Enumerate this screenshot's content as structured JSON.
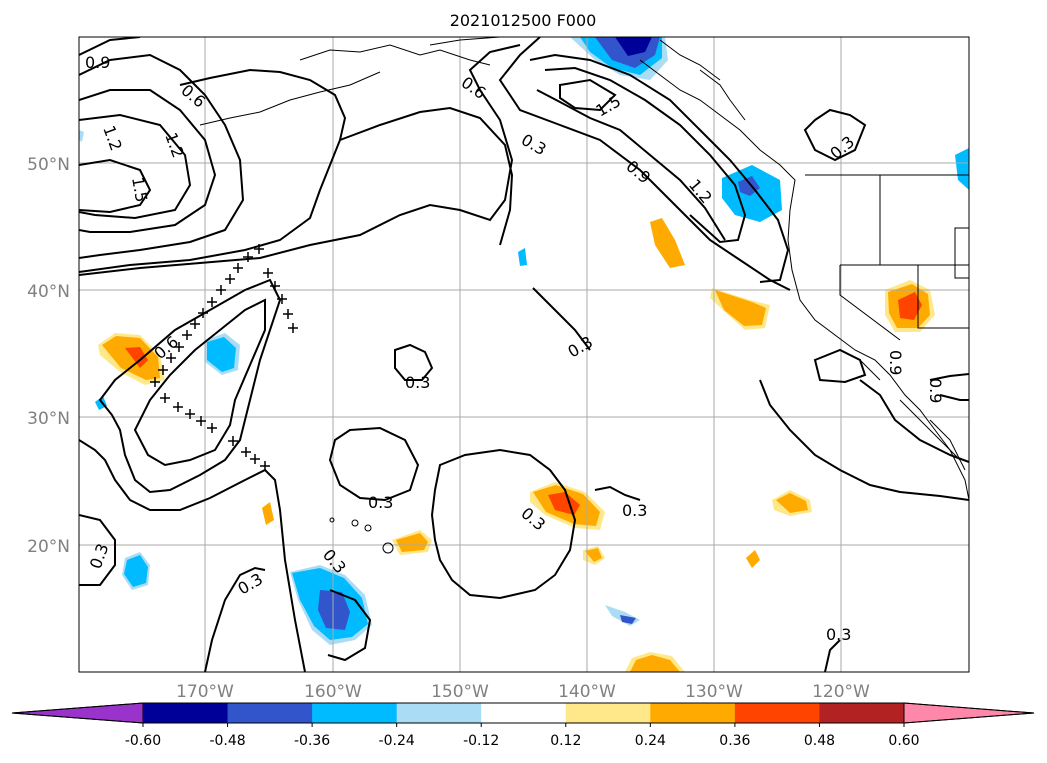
{
  "title": "2021012500 F000",
  "lat_labels": [
    "50°N",
    "40°N",
    "30°N",
    "20°N"
  ],
  "lon_labels": [
    "170°W",
    "160°W",
    "150°W",
    "140°W",
    "130°W",
    "120°W"
  ],
  "contour_labels": [
    "0.9",
    "0.6",
    "1.2",
    "1.2",
    "1.5",
    "0.6",
    "0.3",
    "1.5",
    "0.9",
    "1.2",
    "0.3",
    "0.6",
    "0.3",
    "0.3",
    "0.3",
    "0.3",
    "0.3",
    "0.3",
    "0.3",
    "0.3",
    "0.9",
    "0.9",
    "0.3"
  ],
  "colorbar": {
    "colors": [
      "#9933cc",
      "#000099",
      "#3355cc",
      "#00bbff",
      "#aaddf5",
      "#ffffff",
      "#ffe88a",
      "#ffaa00",
      "#ff4400",
      "#b22222",
      "#ff88aa"
    ],
    "tick_labels": [
      "-0.60",
      "-0.48",
      "-0.36",
      "-0.24",
      "-0.12",
      "0.12",
      "0.24",
      "0.36",
      "0.48",
      "0.60"
    ]
  },
  "legend_colors": {
    "contour_line": "#000000",
    "grid_line": "#aaaaaa",
    "axis_label": "#808080"
  }
}
